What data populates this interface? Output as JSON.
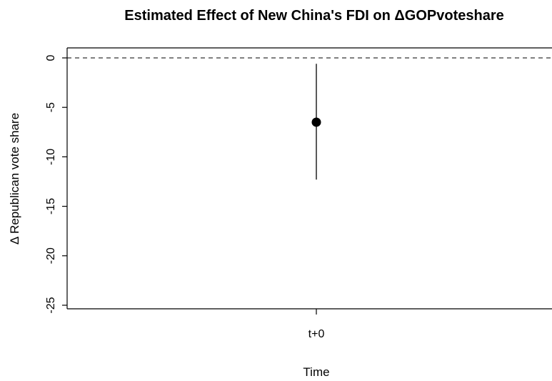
{
  "chart_data": {
    "type": "scatter",
    "title": "Estimated Effect of New China's FDI on ΔGOPvoteshare",
    "xlabel": "Time",
    "ylabel": "Δ Republican vote share",
    "categories": [
      "t+0"
    ],
    "points": [
      {
        "x": "t+0",
        "estimate": -6.5,
        "ci_low": -12.3,
        "ci_high": -0.6
      }
    ],
    "reference_line": {
      "y": 0,
      "style": "dashed"
    },
    "yticks": [
      0,
      -5,
      -10,
      -15,
      -20,
      -25
    ],
    "ylim": [
      -25.5,
      1
    ],
    "grid": false,
    "legend": "none"
  }
}
